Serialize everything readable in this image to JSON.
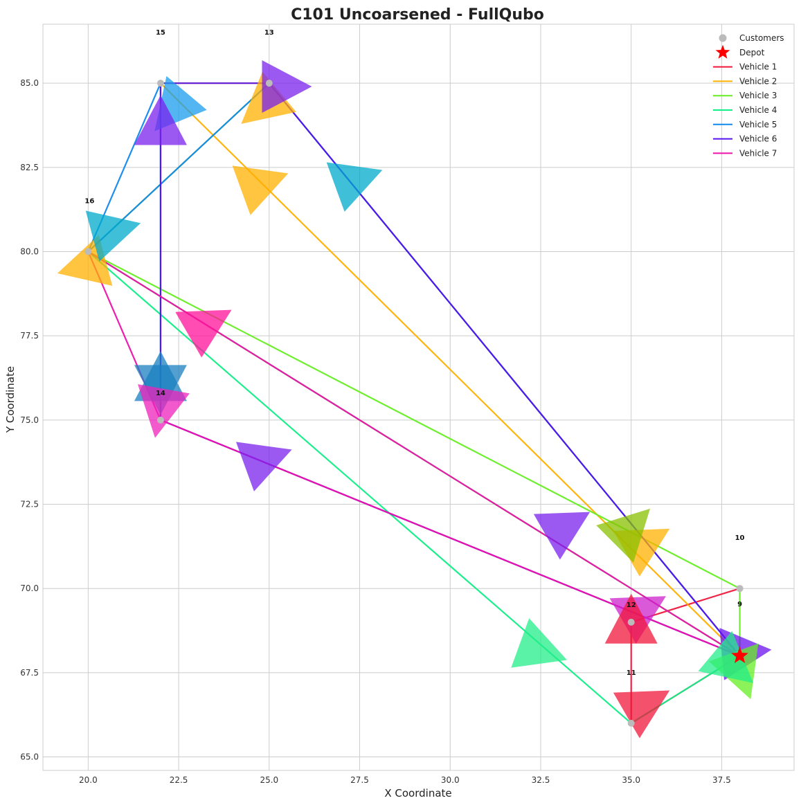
{
  "chart_data": {
    "type": "scatter",
    "title": "C101 Uncoarsened - FullQubo",
    "xlabel": "X Coordinate",
    "ylabel": "Y Coordinate",
    "xlim": [
      18.75,
      39.5
    ],
    "ylim": [
      64.6,
      86.75
    ],
    "xticks": [
      "20.0",
      "22.5",
      "25.0",
      "27.5",
      "30.0",
      "32.5",
      "35.0",
      "37.5"
    ],
    "yticks": [
      "65.0",
      "67.5",
      "70.0",
      "72.5",
      "75.0",
      "77.5",
      "80.0",
      "82.5",
      "85.0"
    ],
    "grid": true,
    "legend_position": "top-right",
    "legend": {
      "customers": "Customers",
      "depot": "Depot"
    },
    "depot": {
      "x": 38,
      "y": 68,
      "color": "#ff0000"
    },
    "customers": [
      {
        "label": "9",
        "x": 38,
        "y": 70
      },
      {
        "label": "10",
        "x": 38,
        "y": 70
      },
      {
        "label": "11",
        "x": 35,
        "y": 66
      },
      {
        "label": "12",
        "x": 35,
        "y": 69
      },
      {
        "label": "13",
        "x": 25,
        "y": 85
      },
      {
        "label": "15",
        "x": 22,
        "y": 85
      },
      {
        "label": "16",
        "x": 20,
        "y": 80
      },
      {
        "label": "14",
        "x": 22,
        "y": 75
      }
    ],
    "series": [
      {
        "name": "Vehicle 1",
        "color": "#f0173b",
        "route": [
          [
            38,
            68
          ],
          [
            35,
            66
          ],
          [
            35,
            69
          ],
          [
            38,
            70
          ]
        ]
      },
      {
        "name": "Vehicle 2",
        "color": "#ffb000",
        "route": [
          [
            38,
            68
          ],
          [
            22,
            85
          ],
          [
            25,
            85
          ],
          [
            20,
            80
          ],
          [
            38,
            68
          ]
        ]
      },
      {
        "name": "Vehicle 3",
        "color": "#66ee22",
        "route": [
          [
            38,
            68
          ],
          [
            38,
            70
          ],
          [
            20,
            80
          ],
          [
            25,
            85
          ],
          [
            38,
            68
          ]
        ]
      },
      {
        "name": "Vehicle 4",
        "color": "#11ee88",
        "route": [
          [
            38,
            68
          ],
          [
            35,
            66
          ],
          [
            20,
            80
          ],
          [
            38,
            68
          ]
        ]
      },
      {
        "name": "Vehicle 5",
        "color": "#1188ee",
        "route": [
          [
            38,
            68
          ],
          [
            25,
            85
          ],
          [
            20,
            80
          ],
          [
            22,
            85
          ],
          [
            22,
            75
          ],
          [
            38,
            68
          ]
        ]
      },
      {
        "name": "Vehicle 6",
        "color": "#5511ee",
        "route": [
          [
            38,
            68
          ],
          [
            22,
            75
          ],
          [
            22,
            85
          ],
          [
            25,
            85
          ],
          [
            38,
            68
          ]
        ]
      },
      {
        "name": "Vehicle 7",
        "color": "#ee11aa",
        "route": [
          [
            38,
            68
          ],
          [
            20,
            80
          ],
          [
            22,
            75
          ],
          [
            38,
            68
          ]
        ]
      }
    ],
    "arrows": [
      {
        "x": 24.9,
        "y": 84.4,
        "angle": -140,
        "color": "#ffb000"
      },
      {
        "x": 24.7,
        "y": 82.0,
        "angle": 20,
        "color": "#ffb000"
      },
      {
        "x": 20.0,
        "y": 79.6,
        "angle": -165,
        "color": "#ffb000"
      },
      {
        "x": 35.3,
        "y": 71.3,
        "angle": 30,
        "color": "#ffb000"
      },
      {
        "x": 22.4,
        "y": 84.3,
        "angle": -130,
        "color": "#1a9dee"
      },
      {
        "x": 20.6,
        "y": 80.6,
        "angle": 15,
        "color": "#00aacc"
      },
      {
        "x": 27.3,
        "y": 82.1,
        "angle": 20,
        "color": "#00aacc"
      },
      {
        "x": 22.0,
        "y": 76.1,
        "angle": -90,
        "color": "#1a80c0"
      },
      {
        "x": 22.0,
        "y": 76.1,
        "angle": 90,
        "color": "#1a80c0"
      },
      {
        "x": 22.0,
        "y": 83.7,
        "angle": 90,
        "color": "#7a22ee"
      },
      {
        "x": 25.3,
        "y": 84.9,
        "angle": 0,
        "color": "#7a22ee"
      },
      {
        "x": 24.8,
        "y": 73.8,
        "angle": 20,
        "color": "#7a22ee"
      },
      {
        "x": 33.1,
        "y": 71.8,
        "angle": 30,
        "color": "#7a22ee"
      },
      {
        "x": 38.0,
        "y": 68.1,
        "angle": 5,
        "color": "#6a11ee"
      },
      {
        "x": 34.9,
        "y": 71.7,
        "angle": 45,
        "color": "#88c000"
      },
      {
        "x": 38.0,
        "y": 67.6,
        "angle": -70,
        "color": "#66ee22"
      },
      {
        "x": 32.4,
        "y": 68.2,
        "angle": -20,
        "color": "#22ee88"
      },
      {
        "x": 37.7,
        "y": 67.8,
        "angle": -40,
        "color": "#22ee88"
      },
      {
        "x": 23.2,
        "y": 77.8,
        "angle": 30,
        "color": "#ff1199"
      },
      {
        "x": 22.0,
        "y": 75.4,
        "angle": -100,
        "color": "#ee22bb"
      },
      {
        "x": 35.2,
        "y": 69.3,
        "angle": 30,
        "color": "#cc22cc"
      },
      {
        "x": 35.0,
        "y": 68.9,
        "angle": 90,
        "color": "#f0173b"
      },
      {
        "x": 35.3,
        "y": 66.5,
        "angle": 30,
        "color": "#f0173b"
      }
    ]
  }
}
